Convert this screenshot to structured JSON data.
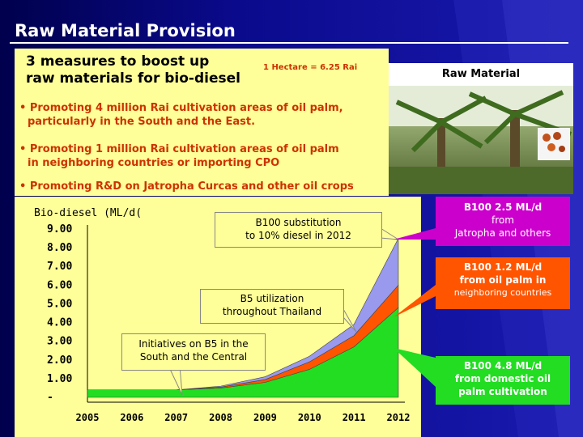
{
  "title": "Raw Material Provision",
  "heading": [
    "3 measures to boost up",
    "raw materials for bio-diesel"
  ],
  "hectare_note": "1 Hectare = 6.25 Rai",
  "bullets": [
    [
      "• Promoting 4 million Rai cultivation areas of oil palm,",
      "particularly in the South and the East."
    ],
    [
      "• Promoting 1 million Rai cultivation areas of oil palm",
      "in neighboring countries or importing CPO"
    ],
    [
      "• Promoting R&D on Jatropha Curcas and other oil crops"
    ]
  ],
  "raw_material_label": "Raw Material",
  "callouts": {
    "b100_target": [
      "B100 substitution",
      "to 10% diesel in 2012"
    ],
    "b5": [
      "B5 utilization",
      "throughout Thailand"
    ],
    "south": [
      "Initiatives on B5 in the",
      "South and the Central"
    ]
  },
  "side_labels": {
    "jatropha": [
      "B100 2.5 ML/d",
      "from",
      "Jatropha and others"
    ],
    "neighbor": [
      "B100 1.2 ML/d",
      "from oil palm in",
      "neighboring countries"
    ],
    "domestic": [
      "B100 4.8  ML/d",
      "from domestic oil",
      "palm cultivation"
    ]
  },
  "colors": {
    "domestic": "#22dd22",
    "neighbor": "#ff5500",
    "jatropha": "#9999ee",
    "panel": "#ffff99",
    "accent_text": "#cc3300"
  },
  "chart_data": {
    "type": "area",
    "ylabel": "Bio-diesel (ML/d(",
    "x": [
      2005,
      2006,
      2007,
      2008,
      2009,
      2010,
      2011,
      2012
    ],
    "y_ticks": [
      "9.00",
      "8.00",
      "7.00",
      "6.00",
      "5.00",
      "4.00",
      "3.00",
      "2.00",
      "1.00",
      "-"
    ],
    "ylim": [
      0,
      9
    ],
    "stacked": true,
    "series": [
      {
        "name": "B100 4.8  ML/d from domestic oil palm cultivation",
        "values": [
          0.4,
          0.4,
          0.4,
          0.5,
          0.8,
          1.5,
          2.7,
          4.8
        ]
      },
      {
        "name": "B100 1.2 ML/d from oil palm in neighboring countries",
        "values": [
          0.0,
          0.0,
          0.0,
          0.05,
          0.15,
          0.4,
          0.6,
          1.2
        ]
      },
      {
        "name": "B100 2.5 ML/d from Jatropha and others",
        "values": [
          0.0,
          0.0,
          0.0,
          0.05,
          0.15,
          0.3,
          0.6,
          2.5
        ]
      }
    ]
  }
}
